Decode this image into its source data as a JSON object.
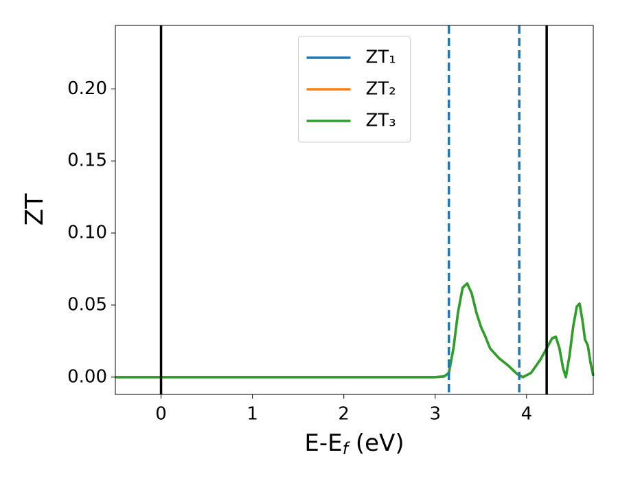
{
  "chart_data": {
    "type": "line",
    "xlabel": [
      "E-E",
      "f",
      " (eV)"
    ],
    "ylabel": "ZT",
    "x": [
      -0.5,
      0,
      1,
      2,
      3,
      3.1,
      3.15,
      3.2,
      3.25,
      3.3,
      3.35,
      3.4,
      3.45,
      3.5,
      3.55,
      3.6,
      3.7,
      3.8,
      3.9,
      3.96,
      4.05,
      4.15,
      4.22,
      4.28,
      4.32,
      4.36,
      4.4,
      4.43,
      4.47,
      4.51,
      4.55,
      4.58,
      4.61,
      4.64,
      4.67,
      4.7,
      4.73
    ],
    "series": [
      {
        "name": "ZT₁",
        "color": "#1f77b4",
        "values": [
          0,
          0,
          0,
          0,
          0,
          0.0005,
          0.003,
          0.02,
          0.045,
          0.062,
          0.065,
          0.058,
          0.045,
          0.035,
          0.028,
          0.02,
          0.013,
          0.008,
          0.002,
          0,
          0.003,
          0.012,
          0.02,
          0.027,
          0.028,
          0.02,
          0.006,
          0,
          0.015,
          0.035,
          0.049,
          0.051,
          0.04,
          0.026,
          0.022,
          0.01,
          0.001
        ]
      },
      {
        "name": "ZT₂",
        "color": "#ff7f0e",
        "values": [
          0,
          0,
          0,
          0,
          0,
          0.0005,
          0.003,
          0.02,
          0.045,
          0.062,
          0.065,
          0.058,
          0.045,
          0.035,
          0.028,
          0.02,
          0.013,
          0.008,
          0.002,
          0,
          0.003,
          0.012,
          0.02,
          0.027,
          0.028,
          0.02,
          0.006,
          0,
          0.015,
          0.035,
          0.049,
          0.051,
          0.04,
          0.026,
          0.022,
          0.01,
          0.001
        ]
      },
      {
        "name": "ZT₃",
        "color": "#2ca02c",
        "values": [
          0,
          0,
          0,
          0,
          0,
          0.0005,
          0.003,
          0.02,
          0.045,
          0.062,
          0.065,
          0.058,
          0.045,
          0.035,
          0.028,
          0.02,
          0.013,
          0.008,
          0.002,
          0,
          0.003,
          0.012,
          0.02,
          0.027,
          0.028,
          0.02,
          0.006,
          0,
          0.015,
          0.035,
          0.049,
          0.051,
          0.04,
          0.026,
          0.022,
          0.01,
          0.001
        ]
      }
    ],
    "vlines": [
      {
        "x": 0,
        "color": "#000000",
        "style": "solid"
      },
      {
        "x": 4.22,
        "color": "#000000",
        "style": "solid"
      },
      {
        "x": 3.15,
        "color": "#1f77b4",
        "style": "dashed"
      },
      {
        "x": 3.92,
        "color": "#1f77b4",
        "style": "dashed"
      }
    ],
    "xlim": [
      -0.5,
      4.73
    ],
    "ylim": [
      -0.012,
      0.244
    ],
    "xticks": [
      0,
      1,
      2,
      3,
      4
    ],
    "yticks": [
      {
        "value": 0,
        "label": "0.00"
      },
      {
        "value": 0.05,
        "label": "0.05"
      },
      {
        "value": 0.1,
        "label": "0.10"
      },
      {
        "value": 0.15,
        "label": "0.15"
      },
      {
        "value": 0.2,
        "label": "0.20"
      }
    ],
    "legend": "upper center",
    "grid": false
  }
}
